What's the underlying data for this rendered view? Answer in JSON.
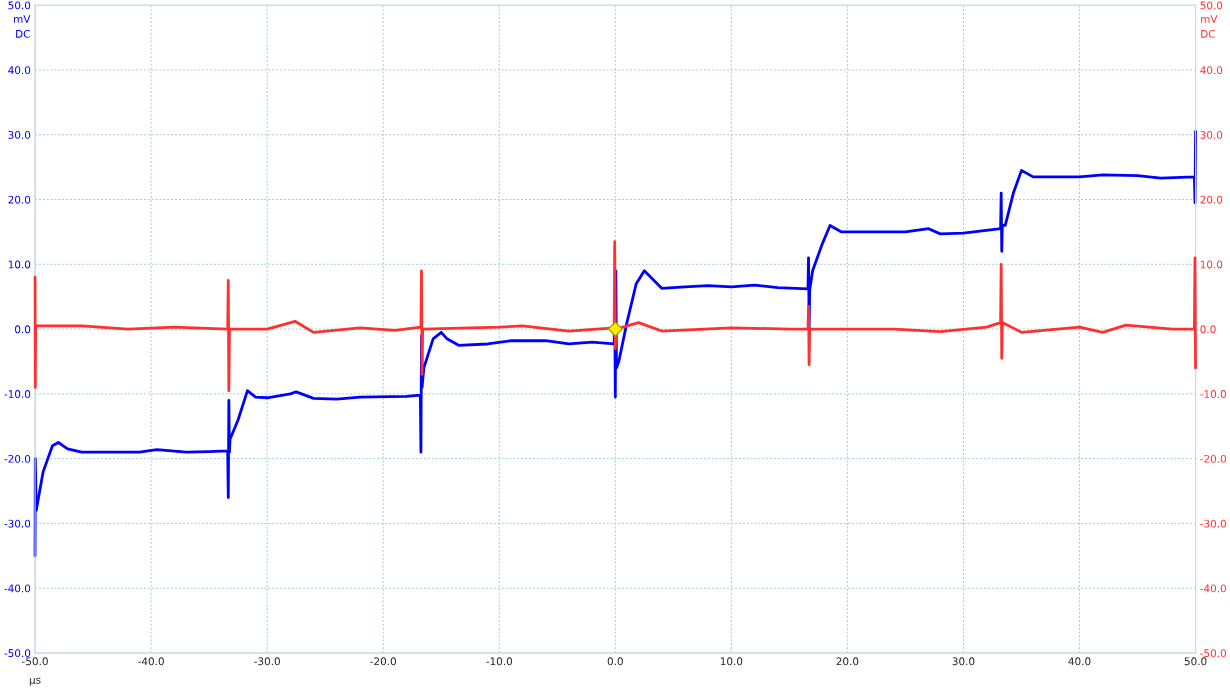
{
  "chart_data": {
    "type": "line",
    "xlabel": "µs",
    "ylabel": "mV\nDC",
    "y2label": "mV\nDC",
    "xlim": [
      -50,
      50
    ],
    "ylim": [
      -50,
      50
    ],
    "y2lim": [
      -50,
      50
    ],
    "xticks": [
      {
        "value": -50,
        "label": "-50.0"
      },
      {
        "value": -40,
        "label": "-40.0"
      },
      {
        "value": -30,
        "label": "-30.0"
      },
      {
        "value": -20,
        "label": "-20.0"
      },
      {
        "value": -10,
        "label": "-10.0"
      },
      {
        "value": 0,
        "label": "0.0"
      },
      {
        "value": 10,
        "label": "10.0"
      },
      {
        "value": 20,
        "label": "20.0"
      },
      {
        "value": 30,
        "label": "30.0"
      },
      {
        "value": 40,
        "label": "40.0"
      },
      {
        "value": 50,
        "label": "50.0"
      }
    ],
    "yticks": [
      {
        "value": -50,
        "label": "-50.0"
      },
      {
        "value": -40,
        "label": "-40.0"
      },
      {
        "value": -30,
        "label": "-30.0"
      },
      {
        "value": -20,
        "label": "-20.0"
      },
      {
        "value": -10,
        "label": "-10.0"
      },
      {
        "value": 0,
        "label": "0.0"
      },
      {
        "value": 10,
        "label": "10.0"
      },
      {
        "value": 20,
        "label": "20.0"
      },
      {
        "value": 30,
        "label": "30.0"
      },
      {
        "value": 40,
        "label": "40.0"
      },
      {
        "value": 50,
        "label": "50.0"
      }
    ],
    "y2ticks": [
      {
        "value": -50,
        "label": "-50.0"
      },
      {
        "value": -40,
        "label": "-40.0"
      },
      {
        "value": -30,
        "label": "-30.0"
      },
      {
        "value": -20,
        "label": "-20.0"
      },
      {
        "value": -10,
        "label": "-10.0"
      },
      {
        "value": 0,
        "label": "0.0"
      },
      {
        "value": 10,
        "label": "10.0"
      },
      {
        "value": 20,
        "label": "20.0"
      },
      {
        "value": 30,
        "label": "30.0"
      },
      {
        "value": 40,
        "label": "40.0"
      },
      {
        "value": 50,
        "label": "50.0"
      }
    ],
    "grid": true,
    "line_style": "solid",
    "series": [
      {
        "color": "#0000ff",
        "x": [
          -50,
          -49.98,
          -49.9,
          -49.3,
          -48.5,
          -48,
          -47.2,
          -46,
          -44,
          -41,
          -39.5,
          -37,
          -35,
          -33.4,
          -33.35,
          -33.3,
          -33.25,
          -33.2,
          -32.5,
          -31.7,
          -31,
          -30,
          -28,
          -27.5,
          -26,
          -24,
          -22,
          -18,
          -16.8,
          -16.75,
          -16.7,
          -16.65,
          -16.5,
          -15.7,
          -15,
          -14.5,
          -13.5,
          -11,
          -9,
          -6,
          -4,
          -2,
          -0.1,
          -0.05,
          0,
          0.05,
          0.1,
          0.3,
          1,
          1.8,
          2.5,
          4,
          6,
          8,
          10,
          12,
          14,
          16.6,
          16.65,
          16.7,
          16.75,
          17,
          17.8,
          18.5,
          19.5,
          22,
          25,
          27,
          28,
          30,
          33.2,
          33.25,
          33.3,
          33.35,
          33.6,
          34.3,
          35,
          36,
          38,
          40,
          42,
          45,
          47,
          49.9,
          49.95,
          50
        ],
        "values": [
          -35,
          -20,
          -28,
          -22,
          -18,
          -17.5,
          -18.5,
          -19,
          -19,
          -19,
          -18.6,
          -19,
          -18.9,
          -18.8,
          -26,
          -11,
          -19,
          -17,
          -14,
          -9.5,
          -10.5,
          -10.6,
          -10,
          -9.7,
          -10.7,
          -10.8,
          -10.5,
          -10.4,
          -10.2,
          -19,
          -1,
          -9,
          -6,
          -1.5,
          -0.5,
          -1.5,
          -2.5,
          -2.3,
          -1.8,
          -1.8,
          -2.3,
          -2,
          -2.3,
          4,
          -10.5,
          9,
          -6,
          -5,
          1,
          7,
          9,
          6.3,
          6.5,
          6.7,
          6.5,
          6.8,
          6.4,
          6.2,
          11,
          0,
          6,
          9,
          13,
          16,
          15,
          15,
          15,
          15.5,
          14.7,
          14.8,
          15.5,
          21,
          12,
          16,
          16,
          21,
          24.5,
          23.5,
          23.5,
          23.5,
          23.8,
          23.7,
          23.3,
          23.5,
          19.5,
          30.5
        ]
      },
      {
        "axis": "y2",
        "color": "#ff3030",
        "x": [
          -50,
          -49.98,
          -49.95,
          -46,
          -42,
          -38,
          -33.4,
          -33.35,
          -33.3,
          -33.25,
          -30,
          -27.6,
          -26,
          -22,
          -19,
          -16.75,
          -16.7,
          -16.65,
          -16.6,
          -10,
          -8,
          -4,
          -0.1,
          -0.05,
          0,
          0.05,
          2,
          4,
          10,
          15,
          16.6,
          16.65,
          16.7,
          16.75,
          20,
          24,
          28,
          32,
          33.2,
          33.25,
          33.3,
          33.35,
          35,
          40,
          42,
          44,
          48,
          49.9,
          49.95,
          50
        ],
        "values": [
          8,
          -9,
          0.5,
          0.5,
          0,
          0.3,
          0,
          7.5,
          -9.5,
          0,
          0,
          1.2,
          -0.5,
          0.2,
          -0.2,
          0.3,
          9,
          -7,
          0,
          0.3,
          0.5,
          -0.3,
          0.2,
          13.5,
          -3,
          0,
          1,
          -0.3,
          0.2,
          0,
          0,
          3.5,
          -5.5,
          0,
          0,
          0,
          -0.4,
          0.3,
          1,
          10,
          -4.5,
          1,
          -0.5,
          0.3,
          -0.5,
          0.6,
          0,
          0,
          11,
          -6
        ]
      }
    ]
  }
}
